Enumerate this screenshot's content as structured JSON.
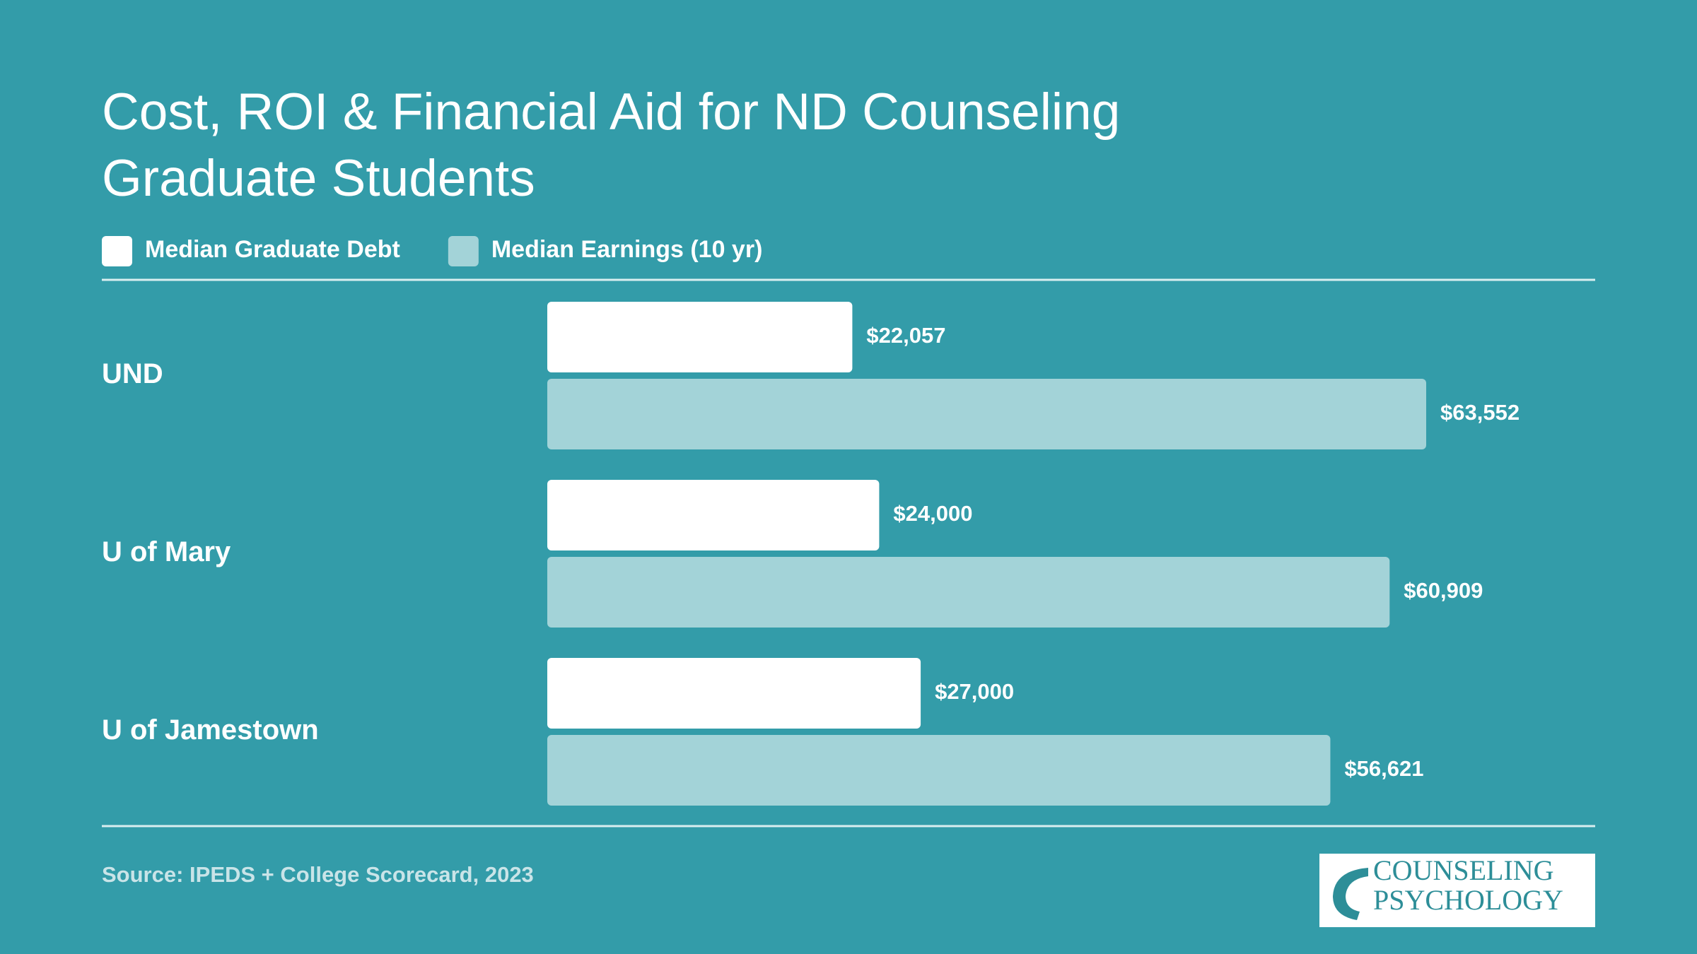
{
  "chart_data": {
    "type": "bar",
    "orientation": "horizontal",
    "title": "Cost, ROI & Financial Aid for ND Counseling Graduate Students",
    "categories": [
      "UND",
      "U of Mary",
      "U of Jamestown"
    ],
    "series": [
      {
        "name": "Median Graduate Debt",
        "color": "#ffffff",
        "values": [
          22057,
          24000,
          27000
        ],
        "value_labels": [
          "$22,057",
          "$24,000",
          "$27,000"
        ]
      },
      {
        "name": "Median Earnings (10 yr)",
        "color": "#a3d3d8",
        "values": [
          63552,
          60909,
          56621
        ],
        "value_labels": [
          "$63,552",
          "$60,909",
          "$56,621"
        ]
      }
    ],
    "source": "Source: IPEDS + College Scorecard, 2023"
  },
  "logo": {
    "line1": "COUNSELING",
    "line2": "PSYCHOLOGY"
  }
}
